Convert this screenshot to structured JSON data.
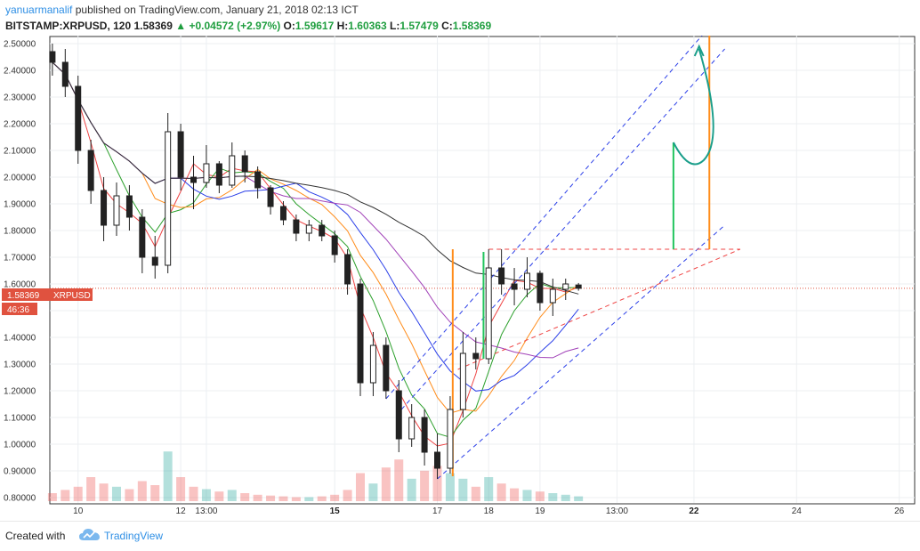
{
  "header": {
    "user": "yanuarmanalif",
    "published": "published on TradingView.com, January 21, 2018 02:13 ICT",
    "symbol": "BITSTAMP:XRPUSD, 120",
    "last": "1.58369",
    "change": "+0.04572 (+2.97%)",
    "open_label": "O:",
    "open": "1.59617",
    "high_label": "H:",
    "high": "1.60363",
    "low_label": "L:",
    "low": "1.57479",
    "close_label": "C:",
    "close": "1.58369"
  },
  "price_tag": {
    "value": "1.58369",
    "symbol": "XRPUSD",
    "countdown": "46:36"
  },
  "footer": {
    "created_with": "Created with",
    "brand": "TradingView"
  },
  "colors": {
    "up": "#26a69a",
    "down": "#ef5350",
    "ma_red": "#ef4444",
    "ma_green": "#2ca02c",
    "ma_orange": "#ff8c1a",
    "ma_blue": "#2b3fe8",
    "ma_purple": "#a142b8",
    "ma_black": "#333333",
    "brand": "#2f8fe5"
  },
  "chart_data": {
    "type": "candlestick",
    "symbol": "XRPUSD",
    "interval": "120",
    "y_axis": {
      "side": "right",
      "ticks": [
        "2.50000",
        "2.40000",
        "2.30000",
        "2.20000",
        "2.10000",
        "2.00000",
        "1.90000",
        "1.80000",
        "1.70000",
        "1.60000",
        "1.50000",
        "1.40000",
        "1.30000",
        "1.20000",
        "1.10000",
        "1.00000",
        "0.90000",
        "0.80000"
      ],
      "range": [
        0.78,
        2.53
      ]
    },
    "x_axis": {
      "ticks": [
        "10",
        "12",
        "13:00",
        "15",
        "17",
        "18",
        "19",
        "13:00",
        "22",
        "24",
        "26"
      ],
      "range_days": [
        9.45,
        26.3
      ]
    },
    "grid": true,
    "candles": [
      {
        "t": 9.5,
        "o": 2.47,
        "h": 2.5,
        "l": 2.38,
        "c": 2.43
      },
      {
        "t": 9.75,
        "o": 2.43,
        "h": 2.48,
        "l": 2.3,
        "c": 2.34
      },
      {
        "t": 10.0,
        "o": 2.34,
        "h": 2.38,
        "l": 2.05,
        "c": 2.1
      },
      {
        "t": 10.25,
        "o": 2.1,
        "h": 2.14,
        "l": 1.9,
        "c": 1.95
      },
      {
        "t": 10.5,
        "o": 1.95,
        "h": 2.0,
        "l": 1.76,
        "c": 1.82
      },
      {
        "t": 10.75,
        "o": 1.82,
        "h": 1.98,
        "l": 1.78,
        "c": 1.93
      },
      {
        "t": 11.0,
        "o": 1.93,
        "h": 1.97,
        "l": 1.8,
        "c": 1.85
      },
      {
        "t": 11.25,
        "o": 1.85,
        "h": 1.88,
        "l": 1.64,
        "c": 1.7
      },
      {
        "t": 11.5,
        "o": 1.7,
        "h": 1.78,
        "l": 1.62,
        "c": 1.67
      },
      {
        "t": 11.75,
        "o": 1.67,
        "h": 2.24,
        "l": 1.64,
        "c": 2.17
      },
      {
        "t": 12.0,
        "o": 2.17,
        "h": 2.2,
        "l": 1.95,
        "c": 2.0
      },
      {
        "t": 12.25,
        "o": 2.0,
        "h": 2.08,
        "l": 1.88,
        "c": 1.98
      },
      {
        "t": 12.5,
        "o": 1.98,
        "h": 2.12,
        "l": 1.96,
        "c": 2.05
      },
      {
        "t": 12.75,
        "o": 2.05,
        "h": 2.06,
        "l": 1.94,
        "c": 1.97
      },
      {
        "t": 13.0,
        "o": 1.97,
        "h": 2.13,
        "l": 1.96,
        "c": 2.08
      },
      {
        "t": 13.25,
        "o": 2.08,
        "h": 2.1,
        "l": 1.98,
        "c": 2.02
      },
      {
        "t": 13.5,
        "o": 2.02,
        "h": 2.04,
        "l": 1.92,
        "c": 1.96
      },
      {
        "t": 13.75,
        "o": 1.96,
        "h": 1.97,
        "l": 1.86,
        "c": 1.89
      },
      {
        "t": 14.0,
        "o": 1.89,
        "h": 1.91,
        "l": 1.82,
        "c": 1.84
      },
      {
        "t": 14.25,
        "o": 1.84,
        "h": 1.86,
        "l": 1.76,
        "c": 1.79
      },
      {
        "t": 14.5,
        "o": 1.79,
        "h": 1.84,
        "l": 1.76,
        "c": 1.82
      },
      {
        "t": 14.75,
        "o": 1.82,
        "h": 1.84,
        "l": 1.76,
        "c": 1.78
      },
      {
        "t": 15.0,
        "o": 1.78,
        "h": 1.8,
        "l": 1.68,
        "c": 1.71
      },
      {
        "t": 15.25,
        "o": 1.71,
        "h": 1.73,
        "l": 1.56,
        "c": 1.6
      },
      {
        "t": 15.5,
        "o": 1.6,
        "h": 1.62,
        "l": 1.18,
        "c": 1.23
      },
      {
        "t": 15.75,
        "o": 1.23,
        "h": 1.42,
        "l": 1.18,
        "c": 1.37
      },
      {
        "t": 16.0,
        "o": 1.37,
        "h": 1.4,
        "l": 1.17,
        "c": 1.2
      },
      {
        "t": 16.25,
        "o": 1.2,
        "h": 1.24,
        "l": 0.97,
        "c": 1.02
      },
      {
        "t": 16.5,
        "o": 1.02,
        "h": 1.15,
        "l": 0.99,
        "c": 1.1
      },
      {
        "t": 16.75,
        "o": 1.1,
        "h": 1.13,
        "l": 0.92,
        "c": 0.97
      },
      {
        "t": 17.0,
        "o": 0.97,
        "h": 1.04,
        "l": 0.87,
        "c": 0.91
      },
      {
        "t": 17.25,
        "o": 0.91,
        "h": 1.18,
        "l": 0.89,
        "c": 1.13
      },
      {
        "t": 17.5,
        "o": 1.13,
        "h": 1.42,
        "l": 1.1,
        "c": 1.34
      },
      {
        "t": 17.75,
        "o": 1.34,
        "h": 1.4,
        "l": 1.28,
        "c": 1.32
      },
      {
        "t": 18.0,
        "o": 1.32,
        "h": 1.73,
        "l": 1.3,
        "c": 1.66
      },
      {
        "t": 18.25,
        "o": 1.66,
        "h": 1.73,
        "l": 1.56,
        "c": 1.6
      },
      {
        "t": 18.5,
        "o": 1.6,
        "h": 1.66,
        "l": 1.52,
        "c": 1.58
      },
      {
        "t": 18.75,
        "o": 1.58,
        "h": 1.7,
        "l": 1.55,
        "c": 1.64
      },
      {
        "t": 19.0,
        "o": 1.64,
        "h": 1.65,
        "l": 1.5,
        "c": 1.53
      },
      {
        "t": 19.25,
        "o": 1.53,
        "h": 1.62,
        "l": 1.48,
        "c": 1.58
      },
      {
        "t": 19.5,
        "o": 1.58,
        "h": 1.62,
        "l": 1.54,
        "c": 1.6
      },
      {
        "t": 19.75,
        "o": 1.59617,
        "h": 1.60363,
        "l": 1.57479,
        "c": 1.58369
      }
    ],
    "volume": [
      {
        "t": 9.5,
        "v": 0.1,
        "up": false
      },
      {
        "t": 9.75,
        "v": 0.14,
        "up": false
      },
      {
        "t": 10.0,
        "v": 0.18,
        "up": false
      },
      {
        "t": 10.25,
        "v": 0.3,
        "up": false
      },
      {
        "t": 10.5,
        "v": 0.22,
        "up": false
      },
      {
        "t": 10.75,
        "v": 0.18,
        "up": true
      },
      {
        "t": 11.0,
        "v": 0.15,
        "up": false
      },
      {
        "t": 11.25,
        "v": 0.25,
        "up": false
      },
      {
        "t": 11.5,
        "v": 0.2,
        "up": false
      },
      {
        "t": 11.75,
        "v": 0.62,
        "up": true
      },
      {
        "t": 12.0,
        "v": 0.3,
        "up": false
      },
      {
        "t": 12.25,
        "v": 0.18,
        "up": false
      },
      {
        "t": 12.5,
        "v": 0.15,
        "up": true
      },
      {
        "t": 12.75,
        "v": 0.12,
        "up": false
      },
      {
        "t": 13.0,
        "v": 0.14,
        "up": true
      },
      {
        "t": 13.25,
        "v": 0.1,
        "up": false
      },
      {
        "t": 13.5,
        "v": 0.08,
        "up": false
      },
      {
        "t": 13.75,
        "v": 0.07,
        "up": false
      },
      {
        "t": 14.0,
        "v": 0.06,
        "up": false
      },
      {
        "t": 14.25,
        "v": 0.05,
        "up": false
      },
      {
        "t": 14.5,
        "v": 0.05,
        "up": true
      },
      {
        "t": 14.75,
        "v": 0.06,
        "up": false
      },
      {
        "t": 15.0,
        "v": 0.08,
        "up": false
      },
      {
        "t": 15.25,
        "v": 0.14,
        "up": false
      },
      {
        "t": 15.5,
        "v": 0.35,
        "up": false
      },
      {
        "t": 15.75,
        "v": 0.22,
        "up": true
      },
      {
        "t": 16.0,
        "v": 0.42,
        "up": false
      },
      {
        "t": 16.25,
        "v": 0.52,
        "up": false
      },
      {
        "t": 16.5,
        "v": 0.28,
        "up": true
      },
      {
        "t": 16.75,
        "v": 0.38,
        "up": false
      },
      {
        "t": 17.0,
        "v": 0.44,
        "up": false
      },
      {
        "t": 17.25,
        "v": 0.35,
        "up": true
      },
      {
        "t": 17.5,
        "v": 0.28,
        "up": true
      },
      {
        "t": 17.75,
        "v": 0.18,
        "up": false
      },
      {
        "t": 18.0,
        "v": 0.3,
        "up": true
      },
      {
        "t": 18.25,
        "v": 0.22,
        "up": false
      },
      {
        "t": 18.5,
        "v": 0.16,
        "up": false
      },
      {
        "t": 18.75,
        "v": 0.14,
        "up": true
      },
      {
        "t": 19.0,
        "v": 0.12,
        "up": false
      },
      {
        "t": 19.25,
        "v": 0.1,
        "up": true
      },
      {
        "t": 19.5,
        "v": 0.08,
        "up": true
      },
      {
        "t": 19.75,
        "v": 0.06,
        "up": true
      }
    ]
  }
}
